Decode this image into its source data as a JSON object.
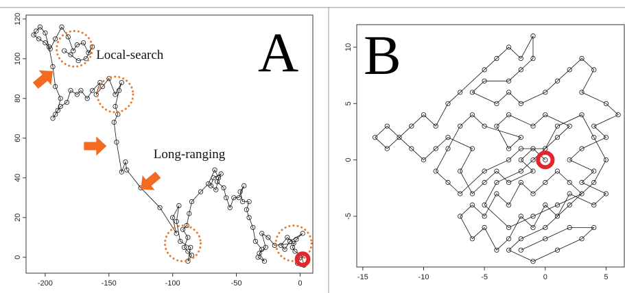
{
  "chart_data": [
    {
      "type": "scatter",
      "panel_label": "A",
      "title": "",
      "xlabel": "",
      "ylabel": "",
      "xlim": [
        -215,
        10
      ],
      "ylim": [
        -8,
        122
      ],
      "x_ticks": [
        -200,
        -150,
        -100,
        -50,
        0
      ],
      "y_ticks": [
        0,
        20,
        40,
        60,
        80,
        100,
        120
      ],
      "x_tick_labels": [
        "-200",
        "-150",
        "-100",
        "-50",
        "0"
      ],
      "y_tick_labels": [
        "0",
        "20",
        "40",
        "60",
        "80",
        "100",
        "120"
      ],
      "grid": false,
      "legend": "none",
      "annotations": [
        {
          "text": "Local-search",
          "x": -160,
          "y": 100
        },
        {
          "text": "Long-ranging",
          "x": -115,
          "y": 50
        }
      ],
      "highlight_circles": [
        {
          "x": -177,
          "y": 105,
          "r": 14,
          "style": "dotted",
          "color": "#e87a2c"
        },
        {
          "x": -145,
          "y": 82,
          "r": 14,
          "style": "dotted",
          "color": "#e87a2c"
        },
        {
          "x": -92,
          "y": 7,
          "r": 14,
          "style": "dotted",
          "color": "#e87a2c"
        },
        {
          "x": -5,
          "y": 7,
          "r": 14,
          "style": "dotted",
          "color": "#e87a2c"
        },
        {
          "x": 2,
          "y": -1,
          "r": 4.5,
          "style": "solid",
          "color": "#e3262d"
        }
      ],
      "arrows": [
        {
          "x": -201,
          "y": 90,
          "direction": "up-right",
          "color": "#f26b21"
        },
        {
          "x": -161,
          "y": 56,
          "direction": "right",
          "color": "#f26b21"
        },
        {
          "x": -118,
          "y": 38,
          "direction": "down-left",
          "color": "#f26b21"
        }
      ],
      "series": [
        {
          "marker": "open-circle",
          "color": "#111111",
          "points": [
            [
              0,
              0
            ],
            [
              -2,
              -3
            ],
            [
              3,
              -4
            ],
            [
              1,
              1
            ],
            [
              -4,
              3
            ],
            [
              -6,
              5
            ],
            [
              -3,
              9
            ],
            [
              2,
              12
            ],
            [
              -8,
              8
            ],
            [
              -12,
              4
            ],
            [
              -15,
              6
            ],
            [
              -10,
              10
            ],
            [
              -5,
              7
            ],
            [
              -20,
              6
            ],
            [
              -25,
              10
            ],
            [
              -30,
              12
            ],
            [
              -27,
              5
            ],
            [
              -32,
              2
            ],
            [
              -28,
              -2
            ],
            [
              -33,
              0
            ],
            [
              -30,
              4
            ],
            [
              -35,
              8
            ],
            [
              -37,
              15
            ],
            [
              -40,
              20
            ],
            [
              -42,
              24
            ],
            [
              -40,
              28
            ],
            [
              -45,
              28
            ],
            [
              -47,
              33
            ],
            [
              -44,
              36
            ],
            [
              -48,
              30
            ],
            [
              -52,
              30
            ],
            [
              -55,
              25
            ],
            [
              -58,
              30
            ],
            [
              -60,
              35
            ],
            [
              -65,
              38
            ],
            [
              -62,
              42
            ],
            [
              -68,
              40
            ],
            [
              -70,
              36
            ],
            [
              -66,
              34
            ],
            [
              -64,
              40
            ],
            [
              -67,
              44
            ],
            [
              -72,
              37
            ],
            [
              -78,
              33
            ],
            [
              -85,
              28
            ],
            [
              -87,
              22
            ],
            [
              -89,
              16
            ],
            [
              -92,
              14
            ],
            [
              -88,
              10
            ],
            [
              -91,
              5
            ],
            [
              -88,
              3
            ],
            [
              -85,
              1
            ],
            [
              -88,
              -2
            ],
            [
              -86,
              5
            ],
            [
              -94,
              8
            ],
            [
              -97,
              18
            ],
            [
              -95,
              26
            ],
            [
              -100,
              20
            ],
            [
              -97,
              12
            ],
            [
              -110,
              25
            ],
            [
              -125,
              35
            ],
            [
              -136,
              44
            ],
            [
              -137,
              48
            ],
            [
              -140,
              43
            ],
            [
              -144,
              58
            ],
            [
              -146,
              68
            ],
            [
              -143,
              72
            ],
            [
              -145,
              76
            ],
            [
              -142,
              84
            ],
            [
              -140,
              88
            ],
            [
              -145,
              82
            ],
            [
              -150,
              90
            ],
            [
              -155,
              86
            ],
            [
              -160,
              82
            ],
            [
              -157,
              88
            ],
            [
              -163,
              84
            ],
            [
              -167,
              80
            ],
            [
              -172,
              84
            ],
            [
              -175,
              82
            ],
            [
              -180,
              84
            ],
            [
              -183,
              78
            ],
            [
              -188,
              76
            ],
            [
              -192,
              72
            ],
            [
              -194,
              70
            ],
            [
              -190,
              74
            ],
            [
              -188,
              80
            ],
            [
              -192,
              86
            ],
            [
              -194,
              96
            ],
            [
              -197,
              106
            ],
            [
              -200,
              113
            ],
            [
              -204,
              116
            ],
            [
              -207,
              114
            ],
            [
              -209,
              112
            ],
            [
              -205,
              110
            ],
            [
              -200,
              108
            ],
            [
              -196,
              105
            ],
            [
              -192,
              110
            ],
            [
              -187,
              116
            ],
            [
              -182,
              111
            ],
            [
              -178,
              104
            ],
            [
              -175,
              107
            ],
            [
              -170,
              108
            ],
            [
              -166,
              103
            ],
            [
              -163,
              106
            ],
            [
              -168,
              100
            ],
            [
              -174,
              99
            ],
            [
              -180,
              102
            ],
            [
              -185,
              104
            ]
          ]
        }
      ]
    },
    {
      "type": "scatter",
      "panel_label": "B",
      "title": "",
      "xlabel": "",
      "ylabel": "",
      "xlim": [
        -15.5,
        6.5
      ],
      "ylim": [
        -9.5,
        12
      ],
      "x_ticks": [
        -15,
        -10,
        -5,
        0,
        5
      ],
      "y_ticks": [
        -5,
        0,
        5,
        10
      ],
      "x_tick_labels": [
        "-15",
        "-10",
        "-5",
        "0",
        "5"
      ],
      "y_tick_labels": [
        "-5",
        "0",
        "5",
        "10"
      ],
      "grid": false,
      "legend": "none",
      "highlight_circles": [
        {
          "x": 0,
          "y": 0,
          "r": 0.6,
          "style": "solid",
          "color": "#e3262d"
        }
      ],
      "series": [
        {
          "marker": "open-circle",
          "color": "#111111",
          "points": [
            [
              0,
              0
            ],
            [
              -1,
              1
            ],
            [
              -2,
              0
            ],
            [
              -1,
              -1
            ],
            [
              -3,
              -2
            ],
            [
              -4,
              -1
            ],
            [
              -5,
              -2
            ],
            [
              -6,
              -3
            ],
            [
              -7,
              -1
            ],
            [
              -6,
              1
            ],
            [
              -8,
              2
            ],
            [
              -9,
              1
            ],
            [
              -10,
              0
            ],
            [
              -11,
              1
            ],
            [
              -12,
              2
            ],
            [
              -13,
              3
            ],
            [
              -14,
              2
            ],
            [
              -13,
              1
            ],
            [
              -11,
              3
            ],
            [
              -10,
              4
            ],
            [
              -9,
              3
            ],
            [
              -8,
              5
            ],
            [
              -7,
              6
            ],
            [
              -5,
              8
            ],
            [
              -4,
              9
            ],
            [
              -3,
              10
            ],
            [
              -2,
              9
            ],
            [
              -1,
              11
            ],
            [
              -1,
              9
            ],
            [
              -2,
              8
            ],
            [
              -3,
              7
            ],
            [
              -5,
              7
            ],
            [
              -6,
              6
            ],
            [
              -4,
              5
            ],
            [
              -3,
              6
            ],
            [
              -2,
              5
            ],
            [
              0,
              6
            ],
            [
              1,
              7
            ],
            [
              2,
              8
            ],
            [
              3,
              9
            ],
            [
              4,
              8
            ],
            [
              3,
              6
            ],
            [
              5,
              5
            ],
            [
              6,
              4
            ],
            [
              4,
              3
            ],
            [
              5,
              2
            ],
            [
              3,
              1
            ],
            [
              2,
              0
            ],
            [
              4,
              -1
            ],
            [
              3,
              -2
            ],
            [
              5,
              -3
            ],
            [
              4,
              -4
            ],
            [
              2,
              -3
            ],
            [
              1,
              -5
            ],
            [
              0,
              -4
            ],
            [
              -1,
              -6
            ],
            [
              -2,
              -5
            ],
            [
              -3,
              -7
            ],
            [
              -4,
              -8
            ],
            [
              -5,
              -6
            ],
            [
              -6,
              -7
            ],
            [
              -7,
              -5
            ],
            [
              -6,
              -4
            ],
            [
              -5,
              -5
            ],
            [
              -4,
              -3
            ],
            [
              -3,
              -4
            ],
            [
              -2,
              -2
            ],
            [
              -1,
              -3
            ],
            [
              0,
              -2
            ],
            [
              1,
              -1
            ],
            [
              2,
              -2
            ],
            [
              3,
              -3
            ],
            [
              1,
              -4
            ],
            [
              -1,
              -5
            ],
            [
              -3,
              -6
            ],
            [
              -5,
              -4
            ],
            [
              -4,
              -2
            ],
            [
              -2,
              -1
            ],
            [
              -1,
              0
            ],
            [
              1,
              2
            ],
            [
              2,
              3
            ],
            [
              0,
              4
            ],
            [
              -1,
              3
            ],
            [
              -3,
              4
            ],
            [
              -4,
              3
            ],
            [
              -3,
              1
            ],
            [
              -2,
              2
            ],
            [
              -5,
              3
            ],
            [
              -6,
              4
            ],
            [
              -7,
              3
            ],
            [
              -8,
              1
            ],
            [
              -9,
              -1
            ],
            [
              -8,
              -2
            ],
            [
              -7,
              -3
            ],
            [
              -5,
              -1
            ],
            [
              -3,
              0
            ],
            [
              -2,
              1
            ],
            [
              0,
              1
            ],
            [
              1,
              3
            ],
            [
              3,
              4
            ],
            [
              4,
              2
            ],
            [
              5,
              0
            ],
            [
              4,
              -2
            ],
            [
              2,
              -4
            ],
            [
              0,
              -6
            ],
            [
              -2,
              -7
            ],
            [
              -3,
              -8
            ],
            [
              -1,
              -9
            ],
            [
              1,
              -8
            ],
            [
              3,
              -7
            ],
            [
              4,
              -6
            ],
            [
              2,
              -6
            ],
            [
              0,
              -7
            ],
            [
              -2,
              -8
            ]
          ]
        }
      ]
    }
  ]
}
